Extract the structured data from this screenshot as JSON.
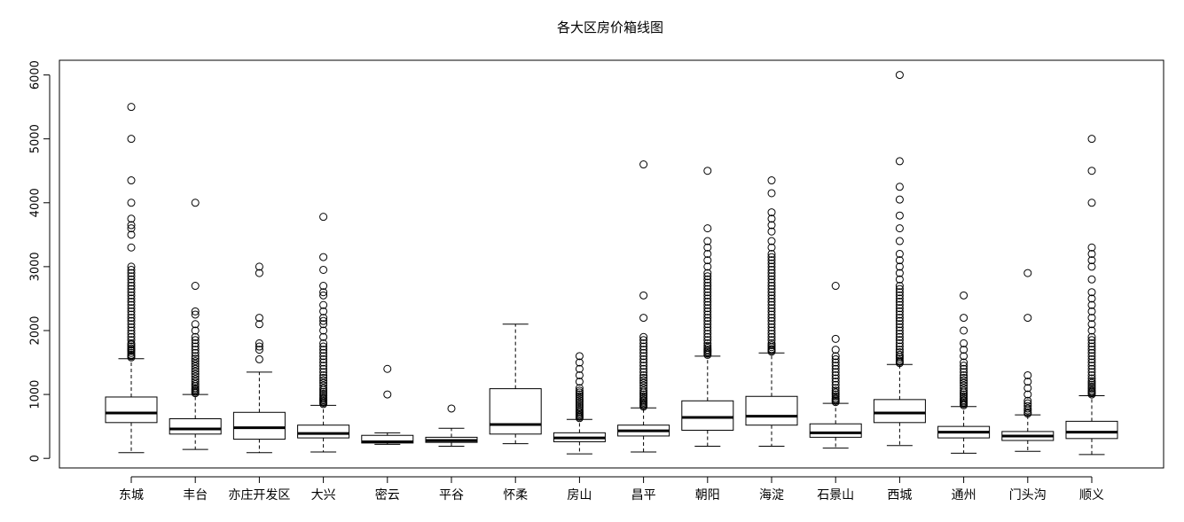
{
  "chart_data": {
    "type": "box",
    "title": "各大区房价箱线图",
    "xlabel": "",
    "ylabel": "",
    "ylim": [
      -150,
      6230
    ],
    "yticks": [
      0,
      1000,
      2000,
      3000,
      4000,
      5000,
      6000
    ],
    "grid": false,
    "legend": "none",
    "categories": [
      "东城",
      "丰台",
      "亦庄开发区",
      "大兴",
      "密云",
      "平谷",
      "怀柔",
      "房山",
      "昌平",
      "朝阳",
      "海淀",
      "石景山",
      "西城",
      "通州",
      "门头沟",
      "顺义"
    ],
    "boxes": [
      {
        "min": 90,
        "q1": 560,
        "median": 710,
        "q3": 960,
        "max": 1560,
        "outliers": [
          1580,
          1600,
          1620,
          1650,
          1680,
          1700,
          1720,
          1750,
          1780,
          1800,
          1850,
          1900,
          1950,
          2000,
          2050,
          2100,
          2150,
          2200,
          2250,
          2300,
          2350,
          2400,
          2450,
          2500,
          2550,
          2600,
          2650,
          2700,
          2750,
          2800,
          2850,
          2900,
          2950,
          3000,
          3300,
          3500,
          3600,
          3650,
          3750,
          4000,
          4350,
          5000,
          5500
        ]
      },
      {
        "min": 140,
        "q1": 380,
        "median": 460,
        "q3": 620,
        "max": 1000,
        "outliers": [
          1020,
          1040,
          1060,
          1080,
          1100,
          1130,
          1160,
          1200,
          1240,
          1280,
          1320,
          1360,
          1400,
          1440,
          1480,
          1520,
          1560,
          1600,
          1650,
          1700,
          1750,
          1800,
          1850,
          1900,
          2000,
          2100,
          2250,
          2300,
          2700,
          4000
        ]
      },
      {
        "min": 90,
        "q1": 300,
        "median": 480,
        "q3": 720,
        "max": 1350,
        "outliers": [
          1550,
          1700,
          1750,
          1800,
          2100,
          2200,
          2900,
          3000
        ]
      },
      {
        "min": 100,
        "q1": 320,
        "median": 390,
        "q3": 520,
        "max": 830,
        "outliers": [
          850,
          870,
          890,
          910,
          930,
          950,
          980,
          1010,
          1040,
          1070,
          1100,
          1140,
          1180,
          1220,
          1260,
          1300,
          1350,
          1400,
          1450,
          1500,
          1550,
          1600,
          1650,
          1700,
          1750,
          1800,
          1900,
          2000,
          2100,
          2150,
          2200,
          2300,
          2400,
          2550,
          2600,
          2700,
          2950,
          3150,
          3780
        ]
      },
      {
        "min": 220,
        "q1": 240,
        "median": 260,
        "q3": 360,
        "max": 400,
        "outliers": [
          1000,
          1400
        ]
      },
      {
        "min": 190,
        "q1": 250,
        "median": 280,
        "q3": 330,
        "max": 470,
        "outliers": [
          780
        ]
      },
      {
        "min": 230,
        "q1": 380,
        "median": 530,
        "q3": 1090,
        "max": 2100,
        "outliers": []
      },
      {
        "min": 70,
        "q1": 260,
        "median": 320,
        "q3": 400,
        "max": 610,
        "outliers": [
          630,
          650,
          670,
          690,
          710,
          730,
          760,
          790,
          820,
          850,
          880,
          910,
          940,
          970,
          1000,
          1030,
          1060,
          1100,
          1200,
          1300,
          1400,
          1500,
          1600
        ]
      },
      {
        "min": 100,
        "q1": 350,
        "median": 430,
        "q3": 520,
        "max": 790,
        "outliers": [
          810,
          830,
          850,
          870,
          890,
          910,
          940,
          970,
          1000,
          1030,
          1060,
          1100,
          1140,
          1180,
          1220,
          1260,
          1300,
          1350,
          1400,
          1450,
          1500,
          1550,
          1600,
          1650,
          1700,
          1750,
          1800,
          1850,
          1900,
          2200,
          2550,
          4600
        ]
      },
      {
        "min": 190,
        "q1": 440,
        "median": 640,
        "q3": 900,
        "max": 1600,
        "outliers": [
          1620,
          1640,
          1660,
          1680,
          1700,
          1730,
          1760,
          1800,
          1850,
          1900,
          1950,
          2000,
          2050,
          2100,
          2150,
          2200,
          2250,
          2300,
          2350,
          2400,
          2450,
          2500,
          2550,
          2600,
          2650,
          2700,
          2750,
          2800,
          2850,
          2900,
          3000,
          3100,
          3200,
          3300,
          3400,
          3600,
          4500
        ]
      },
      {
        "min": 190,
        "q1": 520,
        "median": 660,
        "q3": 970,
        "max": 1650,
        "outliers": [
          1670,
          1690,
          1710,
          1740,
          1770,
          1800,
          1850,
          1900,
          1950,
          2000,
          2050,
          2100,
          2150,
          2200,
          2250,
          2300,
          2350,
          2400,
          2450,
          2500,
          2550,
          2600,
          2650,
          2700,
          2750,
          2800,
          2850,
          2900,
          2950,
          3000,
          3050,
          3100,
          3150,
          3200,
          3300,
          3400,
          3550,
          3650,
          3750,
          3850,
          4150,
          4350
        ]
      },
      {
        "min": 160,
        "q1": 330,
        "median": 400,
        "q3": 540,
        "max": 860,
        "outliers": [
          880,
          900,
          920,
          940,
          970,
          1000,
          1030,
          1060,
          1100,
          1150,
          1200,
          1250,
          1300,
          1350,
          1400,
          1450,
          1500,
          1550,
          1600,
          1700,
          1870,
          2700
        ]
      },
      {
        "min": 200,
        "q1": 560,
        "median": 710,
        "q3": 920,
        "max": 1470,
        "outliers": [
          1490,
          1510,
          1530,
          1560,
          1590,
          1620,
          1660,
          1700,
          1750,
          1800,
          1850,
          1900,
          1950,
          2000,
          2050,
          2100,
          2150,
          2200,
          2250,
          2300,
          2350,
          2400,
          2450,
          2500,
          2550,
          2600,
          2650,
          2700,
          2800,
          2900,
          3000,
          3100,
          3200,
          3400,
          3600,
          3800,
          4050,
          4250,
          4650,
          6000
        ]
      },
      {
        "min": 80,
        "q1": 320,
        "median": 410,
        "q3": 500,
        "max": 810,
        "outliers": [
          830,
          850,
          870,
          890,
          910,
          940,
          970,
          1000,
          1030,
          1060,
          1100,
          1140,
          1180,
          1220,
          1260,
          1300,
          1350,
          1400,
          1450,
          1500,
          1600,
          1700,
          1800,
          2000,
          2200,
          2550
        ]
      },
      {
        "min": 110,
        "q1": 280,
        "median": 350,
        "q3": 420,
        "max": 680,
        "outliers": [
          700,
          720,
          750,
          780,
          820,
          860,
          900,
          1000,
          1100,
          1200,
          1300,
          2200,
          2900
        ]
      },
      {
        "min": 60,
        "q1": 310,
        "median": 410,
        "q3": 580,
        "max": 980,
        "outliers": [
          1000,
          1020,
          1040,
          1060,
          1090,
          1120,
          1150,
          1180,
          1210,
          1250,
          1300,
          1350,
          1400,
          1450,
          1500,
          1550,
          1600,
          1650,
          1700,
          1750,
          1800,
          1850,
          1900,
          2000,
          2100,
          2200,
          2300,
          2400,
          2500,
          2600,
          2800,
          3000,
          3100,
          3200,
          3300,
          4000,
          4500,
          5000
        ]
      }
    ]
  }
}
